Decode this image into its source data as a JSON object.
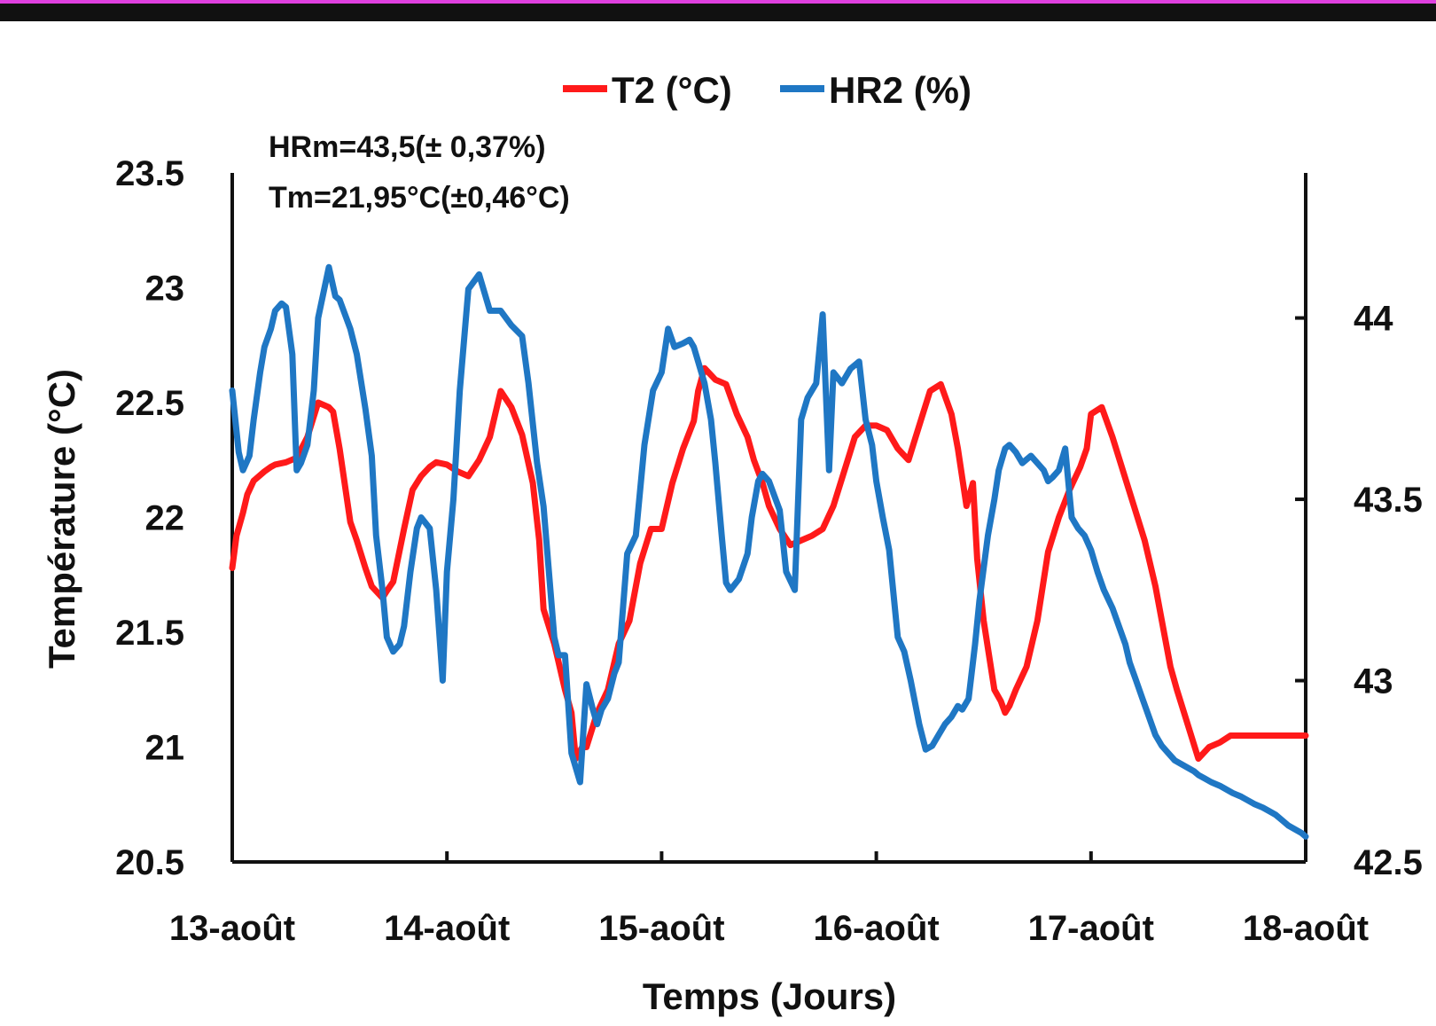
{
  "colors": {
    "top_border": "#111111",
    "top_accent": "#e040e0",
    "t2": "#ff1a1a",
    "hr2": "#1f77c4",
    "axis": "#111111"
  },
  "chart_data": {
    "type": "line",
    "xlabel": "Temps (Jours)",
    "ylabel": "Température (°C)",
    "ylabel_right": "",
    "x_ticks": [
      "13-août",
      "14-août",
      "15-août",
      "16-août",
      "17-août",
      "18-août"
    ],
    "x_range_days": [
      13,
      18
    ],
    "ylim": [
      20.5,
      23.5
    ],
    "y_ticks": [
      "20.5",
      "21",
      "21.5",
      "22",
      "22.5",
      "23",
      "23.5"
    ],
    "ylim_right": [
      42.5,
      44.4
    ],
    "y_right_ticks": [
      "42.5",
      "43",
      "43.5",
      "44"
    ],
    "legend_position": "top-center",
    "annotations": [
      "HRm=43,5(± 0,37%)",
      "Tm=21,95°C(±0,46°C)"
    ],
    "series": [
      {
        "name": "T2 (°C)",
        "axis": "left",
        "x": [
          13.0,
          13.02,
          13.05,
          13.07,
          13.1,
          13.15,
          13.18,
          13.2,
          13.25,
          13.3,
          13.35,
          13.4,
          13.45,
          13.47,
          13.5,
          13.55,
          13.58,
          13.62,
          13.65,
          13.7,
          13.72,
          13.75,
          13.8,
          13.84,
          13.88,
          13.92,
          13.95,
          14.0,
          14.05,
          14.1,
          14.15,
          14.2,
          14.25,
          14.3,
          14.35,
          14.4,
          14.43,
          14.45,
          14.5,
          14.55,
          14.58,
          14.6,
          14.63,
          14.65,
          14.7,
          14.75,
          14.8,
          14.85,
          14.9,
          14.95,
          15.0,
          15.05,
          15.1,
          15.15,
          15.17,
          15.2,
          15.25,
          15.3,
          15.35,
          15.4,
          15.43,
          15.47,
          15.5,
          15.55,
          15.6,
          15.65,
          15.7,
          15.75,
          15.8,
          15.85,
          15.9,
          15.95,
          16.0,
          16.05,
          16.1,
          16.15,
          16.2,
          16.25,
          16.3,
          16.35,
          16.38,
          16.42,
          16.45,
          16.47,
          16.5,
          16.55,
          16.58,
          16.6,
          16.62,
          16.65,
          16.7,
          16.75,
          16.8,
          16.85,
          16.9,
          16.95,
          16.98,
          17.0,
          17.05,
          17.1,
          17.15,
          17.2,
          17.25,
          17.3,
          17.33,
          17.37,
          17.4,
          17.45,
          17.5,
          17.55,
          17.6,
          17.65,
          17.7,
          17.75,
          17.8,
          17.85,
          17.9,
          17.95,
          17.98,
          18.0
        ],
        "values": [
          21.78,
          21.92,
          22.02,
          22.1,
          22.16,
          22.2,
          22.22,
          22.23,
          22.24,
          22.26,
          22.35,
          22.5,
          22.48,
          22.46,
          22.3,
          21.98,
          21.9,
          21.78,
          21.7,
          21.65,
          21.68,
          21.72,
          21.95,
          22.12,
          22.18,
          22.22,
          22.24,
          22.23,
          22.2,
          22.18,
          22.25,
          22.35,
          22.55,
          22.48,
          22.36,
          22.15,
          21.9,
          21.6,
          21.45,
          21.25,
          21.15,
          20.95,
          21.0,
          21.0,
          21.15,
          21.25,
          21.45,
          21.55,
          21.8,
          21.95,
          21.95,
          22.15,
          22.3,
          22.42,
          22.55,
          22.65,
          22.6,
          22.58,
          22.45,
          22.35,
          22.25,
          22.15,
          22.05,
          21.95,
          21.88,
          21.9,
          21.92,
          21.95,
          22.05,
          22.2,
          22.35,
          22.4,
          22.4,
          22.38,
          22.3,
          22.25,
          22.4,
          22.55,
          22.58,
          22.45,
          22.3,
          22.05,
          22.15,
          21.82,
          21.55,
          21.25,
          21.2,
          21.15,
          21.18,
          21.25,
          21.35,
          21.55,
          21.85,
          22.0,
          22.12,
          22.22,
          22.3,
          22.45,
          22.48,
          22.35,
          22.2,
          22.05,
          21.9,
          21.7,
          21.55,
          21.35,
          21.25,
          21.1,
          20.95,
          21.0,
          21.02,
          21.05,
          21.05,
          21.05,
          21.05,
          21.05,
          21.05,
          21.05,
          21.05,
          21.05
        ],
        "color": "#ff1a1a"
      },
      {
        "name": "HR2 (%)",
        "axis": "right",
        "x": [
          13.0,
          13.03,
          13.05,
          13.08,
          13.1,
          13.13,
          13.15,
          13.18,
          13.2,
          13.23,
          13.25,
          13.28,
          13.3,
          13.32,
          13.35,
          13.38,
          13.4,
          13.45,
          13.48,
          13.5,
          13.55,
          13.58,
          13.62,
          13.65,
          13.67,
          13.7,
          13.72,
          13.75,
          13.78,
          13.8,
          13.83,
          13.86,
          13.88,
          13.92,
          13.95,
          13.98,
          14.0,
          14.03,
          14.06,
          14.1,
          14.15,
          14.2,
          14.25,
          14.3,
          14.35,
          14.38,
          14.42,
          14.45,
          14.5,
          14.52,
          14.55,
          14.58,
          14.62,
          14.65,
          14.68,
          14.7,
          14.72,
          14.75,
          14.78,
          14.8,
          14.84,
          14.88,
          14.92,
          14.96,
          15.0,
          15.03,
          15.06,
          15.1,
          15.13,
          15.15,
          15.17,
          15.2,
          15.23,
          15.25,
          15.28,
          15.3,
          15.32,
          15.36,
          15.4,
          15.42,
          15.45,
          15.47,
          15.5,
          15.55,
          15.58,
          15.62,
          15.65,
          15.68,
          15.72,
          15.75,
          15.78,
          15.8,
          15.84,
          15.88,
          15.92,
          15.95,
          15.98,
          16.0,
          16.03,
          16.06,
          16.1,
          16.13,
          16.16,
          16.2,
          16.23,
          16.26,
          16.29,
          16.32,
          16.35,
          16.38,
          16.4,
          16.43,
          16.46,
          16.48,
          16.52,
          16.55,
          16.57,
          16.6,
          16.62,
          16.65,
          16.68,
          16.72,
          16.75,
          16.78,
          16.8,
          16.82,
          16.85,
          16.88,
          16.91,
          16.94,
          16.97,
          17.0,
          17.03,
          17.06,
          17.1,
          17.13,
          17.16,
          17.18,
          17.21,
          17.24,
          17.27,
          17.3,
          17.33,
          17.36,
          17.39,
          17.42,
          17.45,
          17.48,
          17.5,
          17.53,
          17.56,
          17.6,
          17.63,
          17.66,
          17.7,
          17.73,
          17.76,
          17.8,
          17.83,
          17.86,
          17.88,
          17.9,
          17.92,
          17.95,
          17.98,
          18.0
        ],
        "values": [
          43.8,
          43.63,
          43.58,
          43.62,
          43.72,
          43.85,
          43.92,
          43.97,
          44.02,
          44.04,
          44.03,
          43.9,
          43.58,
          43.6,
          43.65,
          43.8,
          44.0,
          44.14,
          44.06,
          44.05,
          43.97,
          43.9,
          43.75,
          43.62,
          43.4,
          43.25,
          43.12,
          43.08,
          43.1,
          43.15,
          43.3,
          43.42,
          43.45,
          43.42,
          43.25,
          43.0,
          43.3,
          43.5,
          43.8,
          44.08,
          44.12,
          44.02,
          44.02,
          43.98,
          43.95,
          43.82,
          43.6,
          43.48,
          43.12,
          43.07,
          43.07,
          42.8,
          42.72,
          42.99,
          42.92,
          42.88,
          42.92,
          42.95,
          43.02,
          43.05,
          43.35,
          43.4,
          43.65,
          43.8,
          43.85,
          43.97,
          43.92,
          43.93,
          43.94,
          43.92,
          43.88,
          43.82,
          43.72,
          43.6,
          43.4,
          43.27,
          43.25,
          43.28,
          43.35,
          43.45,
          43.55,
          43.57,
          43.55,
          43.47,
          43.3,
          43.25,
          43.72,
          43.78,
          43.82,
          44.01,
          43.58,
          43.85,
          43.82,
          43.86,
          43.88,
          43.72,
          43.65,
          43.55,
          43.45,
          43.36,
          43.12,
          43.08,
          43.0,
          42.88,
          42.81,
          42.82,
          42.85,
          42.88,
          42.9,
          42.93,
          42.92,
          42.95,
          43.1,
          43.22,
          43.4,
          43.5,
          43.58,
          43.64,
          43.65,
          43.63,
          43.6,
          43.62,
          43.6,
          43.58,
          43.55,
          43.56,
          43.58,
          43.64,
          43.45,
          43.42,
          43.4,
          43.36,
          43.3,
          43.25,
          43.2,
          43.15,
          43.1,
          43.05,
          43.0,
          42.95,
          42.9,
          42.85,
          42.82,
          42.8,
          42.78,
          42.77,
          42.76,
          42.75,
          42.74,
          42.73,
          42.72,
          42.71,
          42.7,
          42.69,
          42.68,
          42.67,
          42.66,
          42.65,
          42.64,
          42.63,
          42.62,
          42.61,
          42.6,
          42.59,
          42.58,
          42.57
        ],
        "color": "#1f77c4"
      }
    ]
  }
}
